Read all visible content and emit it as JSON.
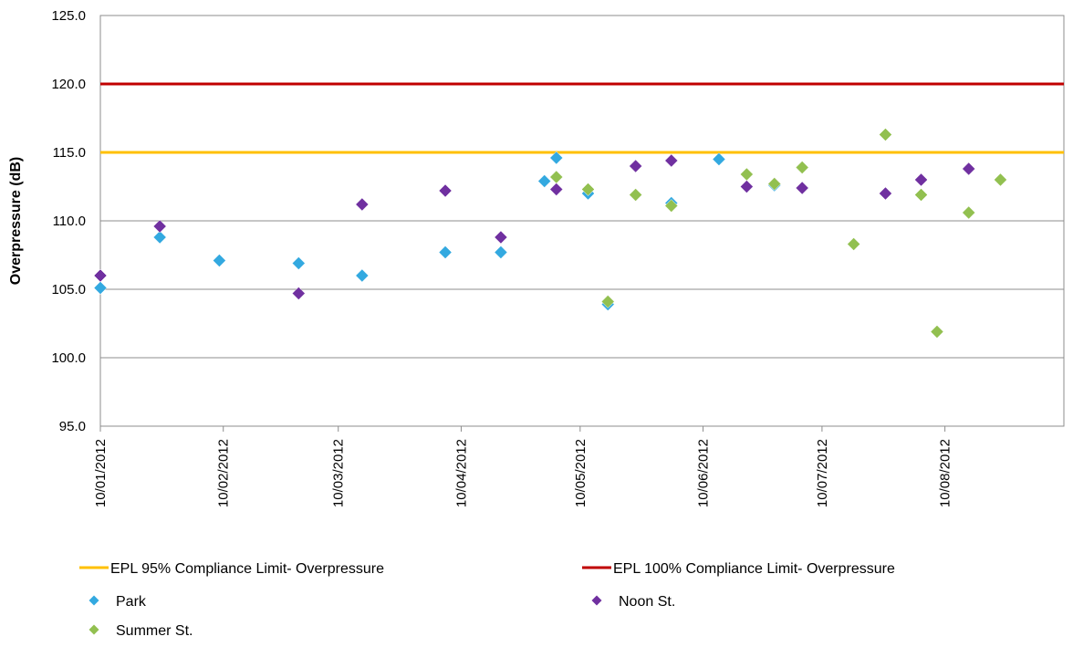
{
  "chart_data": {
    "type": "scatter",
    "title": "",
    "xlabel": "",
    "ylabel": "Overpressure (dB)",
    "ylim": [
      95.0,
      125.0
    ],
    "y_ticks": [
      "95.0",
      "100.0",
      "105.0",
      "110.0",
      "115.0",
      "120.0",
      "125.0"
    ],
    "x_range": [
      "2012-01-01",
      "2012-08-31"
    ],
    "x_ticks": [
      {
        "date": "2012-01-01",
        "label": "10/01/2012"
      },
      {
        "date": "2012-02-01",
        "label": "10/02/2012"
      },
      {
        "date": "2012-03-01",
        "label": "10/03/2012"
      },
      {
        "date": "2012-04-01",
        "label": "10/04/2012"
      },
      {
        "date": "2012-05-01",
        "label": "10/05/2012"
      },
      {
        "date": "2012-06-01",
        "label": "10/06/2012"
      },
      {
        "date": "2012-07-01",
        "label": "10/07/2012"
      },
      {
        "date": "2012-08-01",
        "label": "10/08/2012"
      }
    ],
    "grid": "horizontal",
    "legend_position": "bottom",
    "reference_lines": [
      {
        "name": "EPL 95% Compliance Limit- Overpressure",
        "value": 115.0,
        "color": "#FFC000"
      },
      {
        "name": "EPL 100% Compliance Limit- Overpressure",
        "value": 120.0,
        "color": "#C00000"
      }
    ],
    "series": [
      {
        "name": "Park",
        "color": "#33A9E0",
        "points": [
          {
            "x": "2012-01-01",
            "y": 105.1
          },
          {
            "x": "2012-01-16",
            "y": 108.8
          },
          {
            "x": "2012-01-31",
            "y": 107.1
          },
          {
            "x": "2012-02-20",
            "y": 106.9
          },
          {
            "x": "2012-03-07",
            "y": 106.0
          },
          {
            "x": "2012-03-28",
            "y": 107.7
          },
          {
            "x": "2012-04-11",
            "y": 107.7
          },
          {
            "x": "2012-04-22",
            "y": 112.9
          },
          {
            "x": "2012-04-25",
            "y": 114.6
          },
          {
            "x": "2012-05-03",
            "y": 112.0
          },
          {
            "x": "2012-05-08",
            "y": 103.9
          },
          {
            "x": "2012-05-24",
            "y": 111.3
          },
          {
            "x": "2012-06-05",
            "y": 114.5
          },
          {
            "x": "2012-06-19",
            "y": 112.6
          }
        ]
      },
      {
        "name": "Noon St.",
        "color": "#7030A0",
        "points": [
          {
            "x": "2012-01-01",
            "y": 106.0
          },
          {
            "x": "2012-01-16",
            "y": 109.6
          },
          {
            "x": "2012-02-20",
            "y": 104.7
          },
          {
            "x": "2012-03-07",
            "y": 111.2
          },
          {
            "x": "2012-03-28",
            "y": 112.2
          },
          {
            "x": "2012-04-11",
            "y": 108.8
          },
          {
            "x": "2012-04-25",
            "y": 112.3
          },
          {
            "x": "2012-05-15",
            "y": 114.0
          },
          {
            "x": "2012-05-24",
            "y": 114.4
          },
          {
            "x": "2012-06-12",
            "y": 112.5
          },
          {
            "x": "2012-06-19",
            "y": 112.7
          },
          {
            "x": "2012-06-26",
            "y": 112.4
          },
          {
            "x": "2012-07-17",
            "y": 112.0
          },
          {
            "x": "2012-07-26",
            "y": 113.0
          },
          {
            "x": "2012-08-07",
            "y": 113.8
          }
        ]
      },
      {
        "name": "Summer St.",
        "color": "#92C050",
        "points": [
          {
            "x": "2012-04-25",
            "y": 113.2
          },
          {
            "x": "2012-05-03",
            "y": 112.3
          },
          {
            "x": "2012-05-08",
            "y": 104.1
          },
          {
            "x": "2012-05-15",
            "y": 111.9
          },
          {
            "x": "2012-05-24",
            "y": 111.1
          },
          {
            "x": "2012-06-12",
            "y": 113.4
          },
          {
            "x": "2012-06-19",
            "y": 112.7
          },
          {
            "x": "2012-06-26",
            "y": 113.9
          },
          {
            "x": "2012-07-09",
            "y": 108.3
          },
          {
            "x": "2012-07-17",
            "y": 116.3
          },
          {
            "x": "2012-07-26",
            "y": 111.9
          },
          {
            "x": "2012-07-30",
            "y": 101.9
          },
          {
            "x": "2012-08-07",
            "y": 110.6
          },
          {
            "x": "2012-08-15",
            "y": 113.0
          }
        ]
      }
    ]
  }
}
